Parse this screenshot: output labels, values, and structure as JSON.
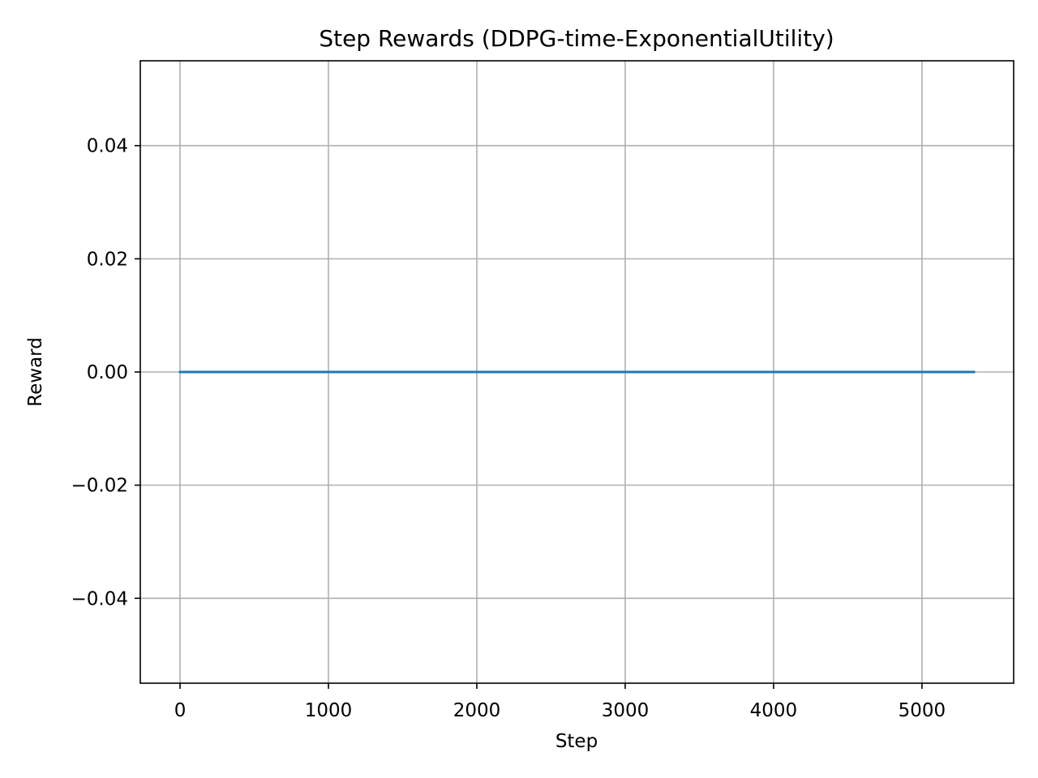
{
  "chart_data": {
    "type": "line",
    "title": "Step Rewards (DDPG-time-ExponentialUtility)",
    "xlabel": "Step",
    "ylabel": "Reward",
    "xlim": [
      -268,
      5618
    ],
    "ylim": [
      -0.055,
      0.055
    ],
    "xticks": [
      0,
      1000,
      2000,
      3000,
      4000,
      5000
    ],
    "xtick_labels": [
      "0",
      "1000",
      "2000",
      "3000",
      "4000",
      "5000"
    ],
    "yticks": [
      0.04,
      0.02,
      0.0,
      -0.02,
      -0.04
    ],
    "ytick_labels": [
      "0.04",
      "0.02",
      "0.00",
      "−0.02",
      "−0.04"
    ],
    "grid": true,
    "series": [
      {
        "color": "#1f77b4",
        "x": [
          0,
          5350
        ],
        "y": [
          0.0,
          0.0
        ]
      }
    ]
  }
}
